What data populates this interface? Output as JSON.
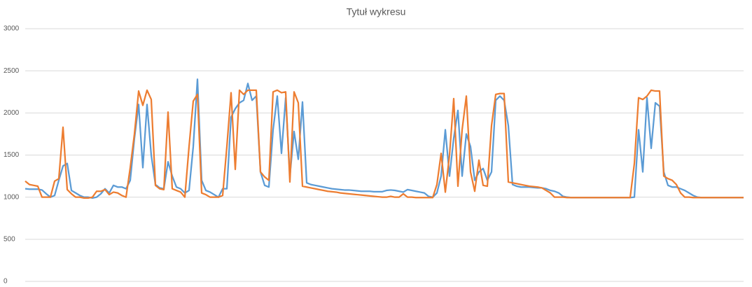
{
  "chart_data": {
    "type": "line",
    "title": "Tytuł wykresu",
    "ylim": [
      0,
      3000
    ],
    "yticks": [
      0,
      500,
      1000,
      1500,
      2000,
      2500,
      3000
    ],
    "grid": true,
    "series": [
      {
        "color": "#5b9bd5",
        "values": [
          1100,
          1095,
          1095,
          1095,
          1085,
          1040,
          1000,
          1020,
          1200,
          1370,
          1400,
          1080,
          1050,
          1020,
          1000,
          1000,
          990,
          1000,
          1040,
          1100,
          1050,
          1140,
          1120,
          1120,
          1100,
          1200,
          1700,
          2100,
          1350,
          2100,
          1500,
          1150,
          1110,
          1100,
          1420,
          1250,
          1120,
          1100,
          1050,
          1080,
          1600,
          2400,
          1200,
          1080,
          1060,
          1030,
          1000,
          1100,
          1100,
          1950,
          2050,
          2120,
          2150,
          2350,
          2150,
          2200,
          1300,
          1140,
          1120,
          1800,
          2200,
          1520,
          2180,
          1250,
          1780,
          1450,
          2130,
          1170,
          1150,
          1140,
          1130,
          1120,
          1110,
          1100,
          1095,
          1090,
          1085,
          1085,
          1080,
          1075,
          1070,
          1070,
          1070,
          1065,
          1065,
          1065,
          1080,
          1085,
          1080,
          1070,
          1060,
          1090,
          1080,
          1070,
          1060,
          1050,
          1010,
          1000,
          1050,
          1250,
          1800,
          1250,
          1700,
          2030,
          1250,
          1750,
          1600,
          1200,
          1300,
          1340,
          1200,
          1300,
          2150,
          2200,
          2150,
          1850,
          1150,
          1130,
          1120,
          1120,
          1120,
          1115,
          1110,
          1110,
          1100,
          1080,
          1070,
          1050,
          1010,
          1000,
          995,
          995,
          995,
          995,
          995,
          995,
          995,
          995,
          995,
          995,
          995,
          995,
          995,
          995,
          995,
          1000,
          1800,
          1300,
          2180,
          1580,
          2120,
          2080,
          1300,
          1140,
          1120,
          1120,
          1100,
          1080,
          1050,
          1020,
          1000,
          995,
          995,
          995,
          995,
          995,
          995,
          995,
          995,
          995,
          995,
          995
        ]
      },
      {
        "color": "#ed7d31",
        "values": [
          1190,
          1150,
          1140,
          1130,
          1000,
          1000,
          1000,
          1190,
          1220,
          1830,
          1090,
          1040,
          1000,
          1000,
          990,
          990,
          1000,
          1070,
          1070,
          1090,
          1030,
          1060,
          1050,
          1020,
          1000,
          1350,
          1750,
          2260,
          2090,
          2270,
          2160,
          1140,
          1100,
          1090,
          2010,
          1100,
          1080,
          1060,
          1000,
          1600,
          2140,
          2220,
          1050,
          1030,
          1000,
          1000,
          1000,
          1020,
          1600,
          2240,
          1330,
          2270,
          2220,
          2270,
          2270,
          2270,
          1300,
          1240,
          1200,
          2250,
          2270,
          2240,
          2250,
          1180,
          2250,
          2120,
          1130,
          1120,
          1110,
          1100,
          1090,
          1080,
          1070,
          1065,
          1060,
          1050,
          1045,
          1040,
          1035,
          1030,
          1025,
          1020,
          1015,
          1010,
          1005,
          1000,
          1000,
          1010,
          1000,
          1000,
          1040,
          1000,
          1000,
          995,
          995,
          995,
          995,
          995,
          1150,
          1520,
          1060,
          1500,
          2170,
          1130,
          1800,
          2200,
          1300,
          1070,
          1440,
          1140,
          1130,
          1850,
          2220,
          2230,
          2230,
          1180,
          1170,
          1160,
          1150,
          1140,
          1130,
          1125,
          1120,
          1110,
          1080,
          1050,
          1000,
          1000,
          1000,
          995,
          995,
          995,
          995,
          995,
          995,
          995,
          995,
          995,
          995,
          995,
          995,
          995,
          995,
          995,
          995,
          1400,
          2180,
          2160,
          2200,
          2270,
          2260,
          2260,
          1250,
          1220,
          1200,
          1150,
          1050,
          1000,
          1000,
          995,
          995,
          995,
          995,
          995,
          995,
          995,
          995,
          995,
          995,
          995,
          995,
          995
        ]
      }
    ]
  }
}
